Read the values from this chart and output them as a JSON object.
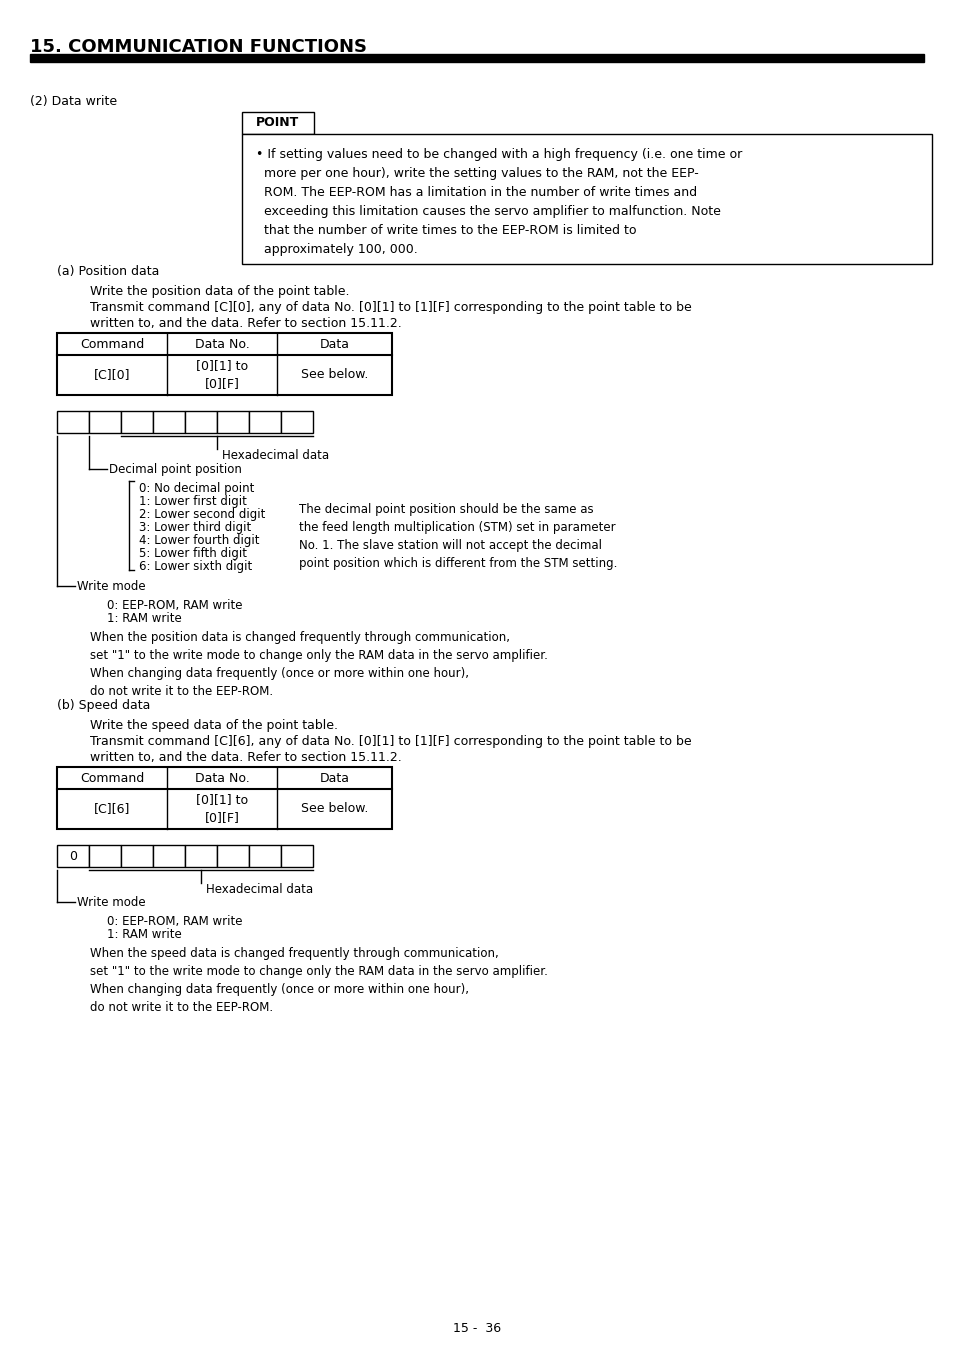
{
  "title": "15. COMMUNICATION FUNCTIONS",
  "bg_color": "#ffffff",
  "text_color": "#000000",
  "page_number": "15 -  36",
  "decimal_point_items": [
    "0: No decimal point",
    "1: Lower first digit",
    "2: Lower second digit",
    "3: Lower third digit",
    "4: Lower fourth digit",
    "5: Lower fifth digit",
    "6: Lower sixth digit"
  ]
}
